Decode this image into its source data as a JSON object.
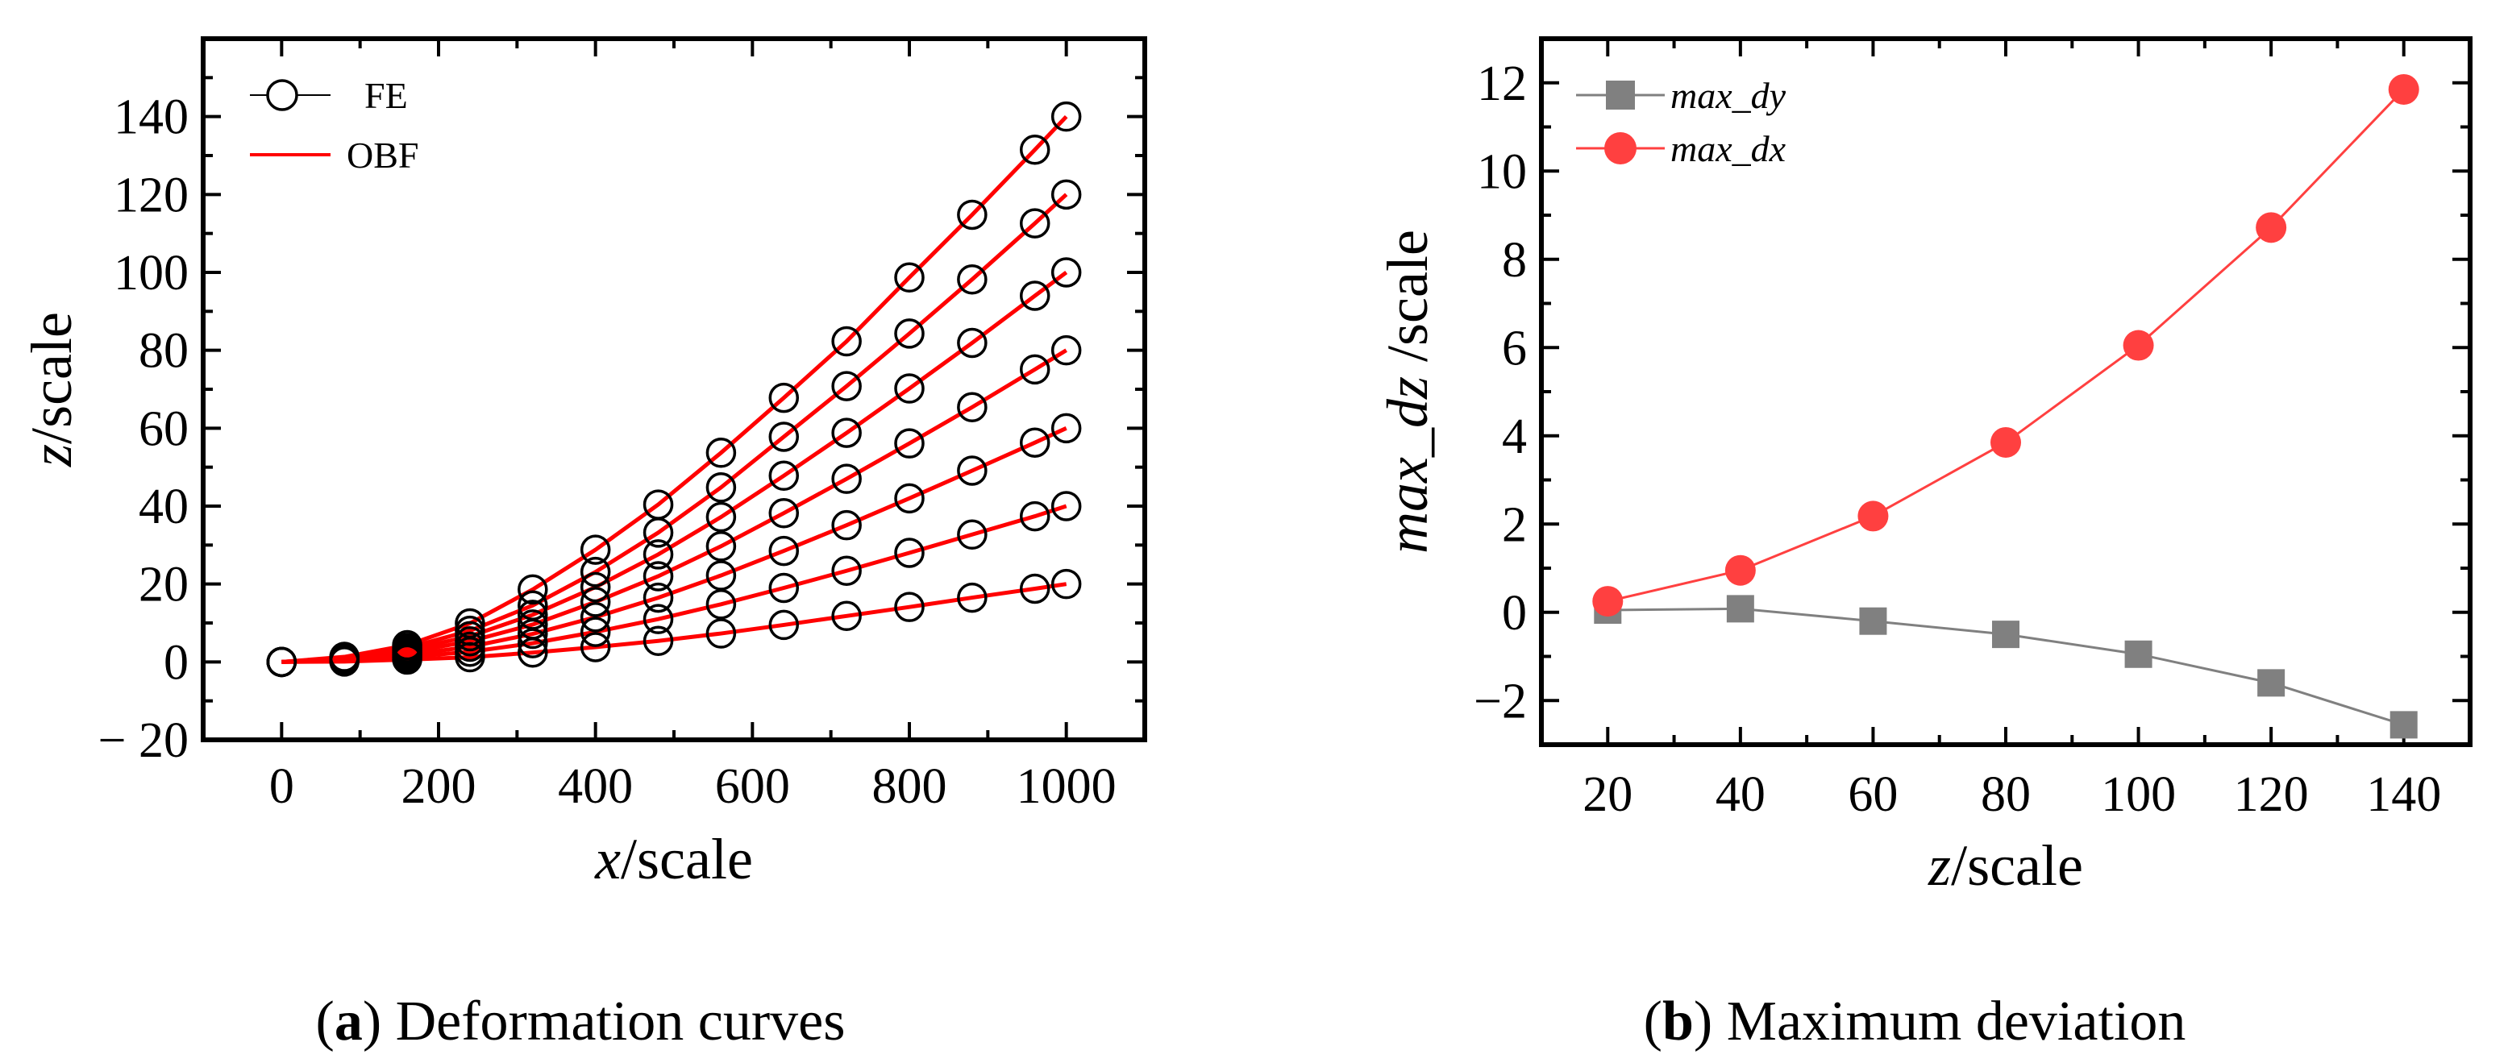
{
  "chart_data": [
    {
      "type": "scatter",
      "panel": "a",
      "caption_letter": "a",
      "caption_text": ") Deformation curves",
      "xlabel_var": "x",
      "xlabel_unit": "/scale",
      "ylabel_var": "z",
      "ylabel_unit": "/scale",
      "xlim": [
        -100,
        1100
      ],
      "ylim": [
        -20,
        160
      ],
      "x_ticks": [
        "0",
        "200",
        "400",
        "600",
        "800",
        "1000"
      ],
      "y_ticks": [
        "− 20",
        "0",
        "20",
        "40",
        "60",
        "80",
        "100",
        "120",
        "140"
      ],
      "legend": [
        {
          "label": "FE",
          "style": "open-circle-line"
        },
        {
          "label": "OBF",
          "style": "line"
        }
      ],
      "legend_position": "top-left",
      "colors": {
        "fe": "#000000",
        "obf": "#ff0000",
        "fe_line": "#4a78c8"
      },
      "series": [
        {
          "tip": 20,
          "x": [
            0,
            80,
            160,
            240,
            320,
            400,
            480,
            560,
            640,
            720,
            800,
            880,
            960,
            1000
          ],
          "y": [
            0,
            0.1,
            0.6,
            1.2,
            2.4,
            3.8,
            5.4,
            7.3,
            9.5,
            11.8,
            14.1,
            16.5,
            18.8,
            20
          ]
        },
        {
          "tip": 40,
          "x": [
            0,
            80,
            160,
            240,
            320,
            400,
            480,
            560,
            640,
            720,
            800,
            880,
            960,
            1000
          ],
          "y": [
            0,
            0.3,
            1.2,
            2.6,
            4.8,
            7.7,
            11.0,
            14.8,
            19.0,
            23.4,
            28.0,
            32.7,
            37.4,
            40
          ]
        },
        {
          "tip": 60,
          "x": [
            0,
            80,
            160,
            240,
            320,
            400,
            480,
            560,
            640,
            720,
            800,
            880,
            960,
            1000
          ],
          "y": [
            0,
            0.5,
            1.8,
            3.9,
            7.2,
            11.5,
            16.5,
            22.2,
            28.5,
            35.1,
            42.0,
            49.1,
            56.3,
            60
          ]
        },
        {
          "tip": 80,
          "x": [
            0,
            80,
            160,
            240,
            320,
            400,
            480,
            560,
            640,
            720,
            800,
            880,
            960,
            1000
          ],
          "y": [
            0,
            0.7,
            2.4,
            5.3,
            9.6,
            15.4,
            22.0,
            29.7,
            38.2,
            47.0,
            56.1,
            65.4,
            75.1,
            80
          ]
        },
        {
          "tip": 100,
          "x": [
            0,
            80,
            160,
            240,
            320,
            400,
            480,
            560,
            640,
            720,
            800,
            880,
            960,
            1000
          ],
          "y": [
            0,
            0.9,
            3.0,
            6.6,
            12.1,
            19.2,
            27.6,
            37.2,
            47.8,
            58.8,
            70.2,
            81.9,
            94.0,
            100
          ]
        },
        {
          "tip": 120,
          "x": [
            0,
            80,
            160,
            240,
            320,
            400,
            480,
            560,
            640,
            720,
            800,
            880,
            960,
            1000
          ],
          "y": [
            0,
            1.1,
            3.6,
            8.0,
            14.5,
            23.1,
            33.2,
            44.8,
            57.8,
            70.8,
            84.3,
            98.2,
            112.6,
            120
          ]
        },
        {
          "tip": 140,
          "x": [
            0,
            80,
            160,
            240,
            320,
            400,
            480,
            560,
            640,
            720,
            800,
            880,
            960,
            1000
          ],
          "y": [
            0,
            1.3,
            4.3,
            9.9,
            18.6,
            28.8,
            40.4,
            53.7,
            67.8,
            82.3,
            98.7,
            114.8,
            131.5,
            140
          ]
        }
      ]
    },
    {
      "type": "line",
      "panel": "b",
      "caption_letter": "b",
      "caption_text": ") Maximum deviation",
      "xlabel_var": "z",
      "xlabel_unit": "/scale",
      "ylabel_var": "max_dz",
      "ylabel_unit": " /scale",
      "xlim": [
        10,
        150
      ],
      "ylim": [
        -3,
        13
      ],
      "x_ticks": [
        "20",
        "40",
        "60",
        "80",
        "100",
        "120",
        "140"
      ],
      "y_ticks": [
        "−2",
        "0",
        "2",
        "4",
        "6",
        "8",
        "10",
        "12"
      ],
      "legend_position": "top-left",
      "x": [
        20,
        40,
        60,
        80,
        100,
        120,
        140
      ],
      "series": [
        {
          "name": "max_dy",
          "marker": "square",
          "color": "#808080",
          "values": [
            0.05,
            0.08,
            -0.2,
            -0.5,
            -0.95,
            -1.6,
            -2.55
          ]
        },
        {
          "name": "max_dx",
          "marker": "circle",
          "color": "#ff4040",
          "values": [
            0.25,
            0.95,
            2.18,
            3.85,
            6.05,
            8.72,
            11.85
          ]
        }
      ]
    }
  ]
}
